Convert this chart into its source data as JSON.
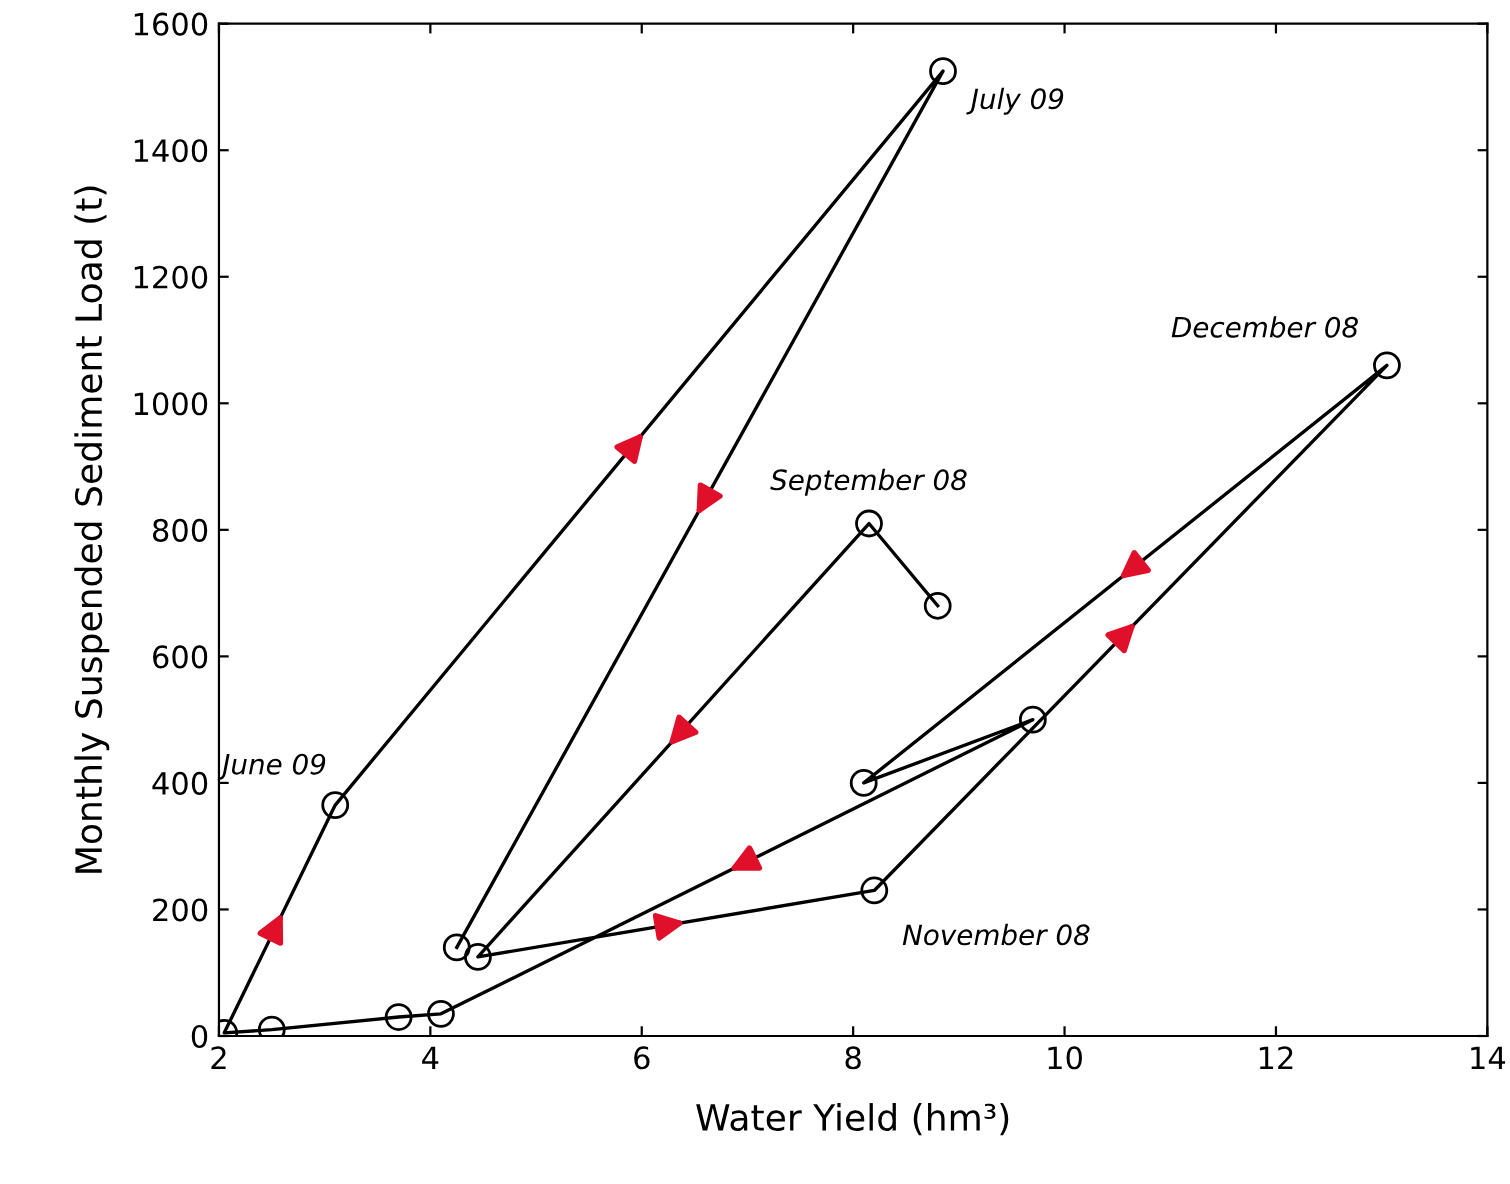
{
  "chart_data": {
    "type": "line",
    "xlabel": "Water Yield (hm³)",
    "ylabel": "Monthly Suspended Sediment Load (t)",
    "series": [
      {
        "color": "#000000",
        "x": [
          8.8,
          8.15,
          4.45,
          8.2,
          13.05,
          8.1,
          9.7,
          4.1,
          3.7,
          2.5,
          2.05,
          3.1,
          8.85,
          4.25
        ],
        "values": [
          680,
          810,
          125,
          230,
          1060,
          400,
          500,
          35,
          30,
          10,
          5,
          365,
          1525,
          140
        ]
      }
    ],
    "marker": "circle",
    "line_style": "solid",
    "grid": false,
    "legend": false,
    "xlim": [
      2,
      14
    ],
    "xticks": [
      2,
      4,
      6,
      8,
      10,
      12,
      14
    ],
    "ylim": [
      0,
      1600
    ],
    "yticks": [
      0,
      200,
      400,
      600,
      800,
      1000,
      1200,
      1400,
      1600
    ],
    "annotations": [
      {
        "text": "July 09",
        "x": 8.85,
        "y": 1525
      },
      {
        "text": "December 08",
        "x": 13.05,
        "y": 1060
      },
      {
        "text": "September 08",
        "x": 8.15,
        "y": 810
      },
      {
        "text": "June 09",
        "x": 3.1,
        "y": 365
      },
      {
        "text": "November 08",
        "x": 8.2,
        "y": 230
      }
    ]
  }
}
